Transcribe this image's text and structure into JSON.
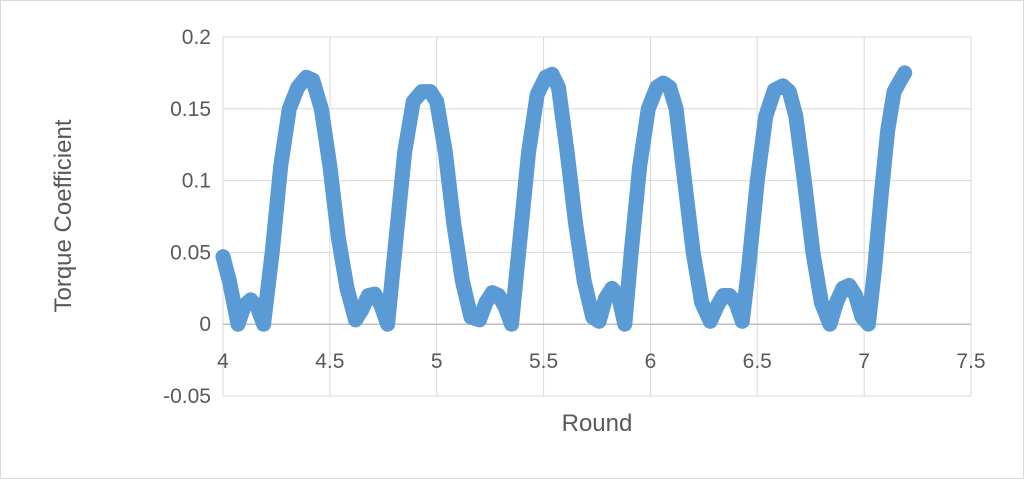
{
  "chart_data": {
    "type": "line",
    "title": "",
    "xlabel": "Round",
    "ylabel": "Torque Coefficient",
    "xlim": [
      4,
      7.5
    ],
    "ylim": [
      -0.05,
      0.2
    ],
    "x_ticks": [
      "4",
      "4.5",
      "5",
      "5.5",
      "6",
      "6.5",
      "7",
      "7.5"
    ],
    "y_ticks": [
      "0.2",
      "0.15",
      "0.1",
      "0.05",
      "0",
      "-0.05"
    ],
    "grid": true,
    "legend": "none",
    "series": [
      {
        "color": "#5b9bd5",
        "x": [
          4.0,
          4.03,
          4.07,
          4.1,
          4.13,
          4.16,
          4.19,
          4.23,
          4.27,
          4.31,
          4.35,
          4.39,
          4.42,
          4.46,
          4.5,
          4.54,
          4.58,
          4.62,
          4.65,
          4.68,
          4.71,
          4.74,
          4.77,
          4.81,
          4.85,
          4.89,
          4.93,
          4.97,
          5.0,
          5.04,
          5.08,
          5.12,
          5.16,
          5.2,
          5.23,
          5.26,
          5.29,
          5.32,
          5.35,
          5.39,
          5.43,
          5.47,
          5.51,
          5.54,
          5.57,
          5.61,
          5.65,
          5.69,
          5.73,
          5.76,
          5.79,
          5.82,
          5.85,
          5.88,
          5.91,
          5.95,
          5.99,
          6.03,
          6.06,
          6.09,
          6.12,
          6.16,
          6.2,
          6.24,
          6.28,
          6.31,
          6.34,
          6.37,
          6.4,
          6.43,
          6.46,
          6.5,
          6.54,
          6.58,
          6.62,
          6.65,
          6.68,
          6.72,
          6.76,
          6.8,
          6.84,
          6.87,
          6.9,
          6.93,
          6.96,
          6.99,
          7.02,
          7.05,
          7.08,
          7.11,
          7.14,
          7.17,
          7.19
        ],
        "y": [
          0.047,
          0.03,
          0.0,
          0.013,
          0.017,
          0.012,
          0.0,
          0.05,
          0.11,
          0.15,
          0.165,
          0.172,
          0.17,
          0.15,
          0.11,
          0.06,
          0.025,
          0.003,
          0.01,
          0.02,
          0.021,
          0.013,
          0.0,
          0.06,
          0.12,
          0.155,
          0.162,
          0.162,
          0.155,
          0.12,
          0.07,
          0.03,
          0.005,
          0.003,
          0.015,
          0.022,
          0.02,
          0.012,
          0.0,
          0.06,
          0.12,
          0.16,
          0.172,
          0.174,
          0.165,
          0.12,
          0.07,
          0.03,
          0.005,
          0.002,
          0.018,
          0.025,
          0.02,
          0.0,
          0.05,
          0.11,
          0.15,
          0.165,
          0.168,
          0.165,
          0.15,
          0.1,
          0.05,
          0.015,
          0.002,
          0.012,
          0.02,
          0.02,
          0.015,
          0.002,
          0.04,
          0.1,
          0.145,
          0.163,
          0.166,
          0.162,
          0.145,
          0.1,
          0.05,
          0.015,
          0.0,
          0.015,
          0.025,
          0.027,
          0.02,
          0.005,
          0.0,
          0.04,
          0.09,
          0.135,
          0.162,
          0.17,
          0.175
        ]
      }
    ]
  }
}
